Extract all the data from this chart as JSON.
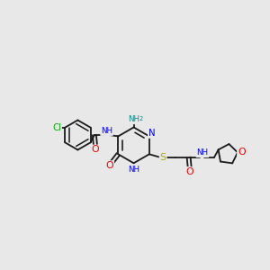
{
  "bg_color": "#e8e8e8",
  "C": "#1a1a1a",
  "N": "#0000ee",
  "O": "#ee0000",
  "S": "#aaaa00",
  "Cl": "#00aa00",
  "NH2_color": "#008888",
  "bond_color": "#1a1a1a",
  "bw": 1.3,
  "fs": 6.8,
  "xlim": [
    0,
    10.5
  ],
  "ylim": [
    2.5,
    8.5
  ],
  "figsize": [
    3.0,
    3.0
  ],
  "dpi": 100
}
